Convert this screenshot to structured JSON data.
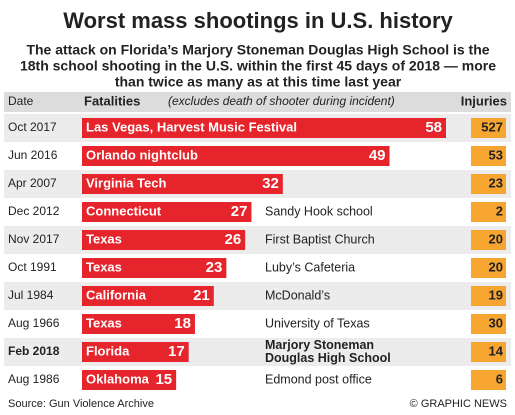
{
  "chart_data": {
    "type": "bar",
    "title": "Worst mass shootings in U.S. history",
    "subtitle": [
      "The attack on Florida’s Marjory Stoneman Douglas High School is the",
      "18th school shooting in the U.S. within the first 45 days of 2018 — more",
      "than twice as many as at this time last year"
    ],
    "headers": {
      "date": "Date",
      "fatalities": "Fatalities",
      "fatalities_note": "(excludes death of shooter during incident)",
      "injuries": "Injuries"
    },
    "dates": [
      "Oct 2017",
      "Jun 2016",
      "Apr 2007",
      "Dec 2012",
      "Nov 2017",
      "Oct 1991",
      "Jul 1984",
      "Aug 1966",
      "Feb 2018",
      "Aug 1986"
    ],
    "categories": [
      "Las Vegas, Harvest Music Festival",
      "Orlando nightclub",
      "Virginia Tech",
      "Connecticut",
      "Texas",
      "Texas",
      "California",
      "Texas",
      "Florida",
      "Oklahoma"
    ],
    "notes": [
      [],
      [],
      [],
      [
        "Sandy Hook school"
      ],
      [
        "First Baptist Church"
      ],
      [
        "Luby’s Cafeteria"
      ],
      [
        "McDonald’s"
      ],
      [
        "University of Texas"
      ],
      [
        "Marjory Stoneman",
        "Douglas High School"
      ],
      [
        "Edmond post office"
      ]
    ],
    "values": [
      58,
      49,
      32,
      27,
      26,
      23,
      21,
      18,
      17,
      15
    ],
    "injuries": [
      527,
      53,
      23,
      2,
      20,
      20,
      19,
      30,
      14,
      6
    ],
    "highlight_index": 8,
    "color": "#e5242b",
    "injuries_color": "#f6a531",
    "source": "Source: Gun Violence Archive",
    "credit": "© GRAPHIC NEWS"
  }
}
